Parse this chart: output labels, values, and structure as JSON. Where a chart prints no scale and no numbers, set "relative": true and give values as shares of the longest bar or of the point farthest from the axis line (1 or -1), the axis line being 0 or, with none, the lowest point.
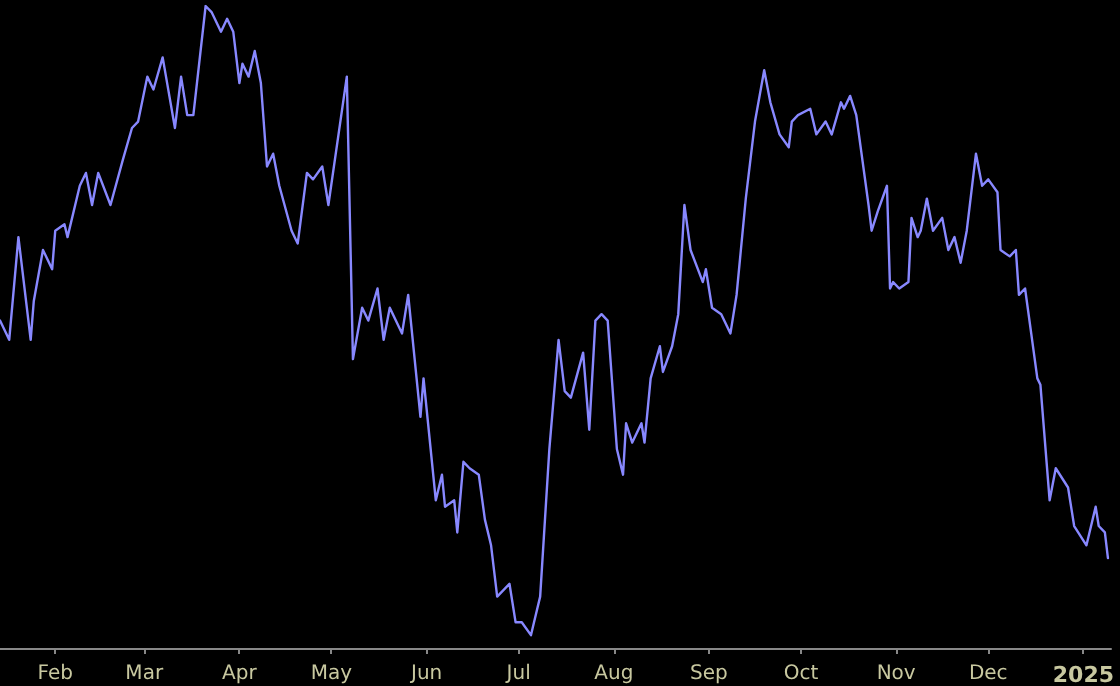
{
  "chart_data": {
    "type": "line",
    "relative": true,
    "color": "#8888ff",
    "marker": "none",
    "line_style": "solid",
    "grid": false,
    "xlim": [
      "2024-01-14",
      "2025-01-10"
    ],
    "xticks": [
      {
        "value": "2024-02-01",
        "label": "Feb"
      },
      {
        "value": "2024-03-01",
        "label": "Mar"
      },
      {
        "value": "2024-04-01",
        "label": "Apr"
      },
      {
        "value": "2024-05-01",
        "label": "May"
      },
      {
        "value": "2024-06-01",
        "label": "Jun"
      },
      {
        "value": "2024-07-01",
        "label": "Jul"
      },
      {
        "value": "2024-08-01",
        "label": "Aug"
      },
      {
        "value": "2024-09-01",
        "label": "Sep"
      },
      {
        "value": "2024-10-01",
        "label": "Oct"
      },
      {
        "value": "2024-11-01",
        "label": "Nov"
      },
      {
        "value": "2024-12-01",
        "label": "Dec"
      },
      {
        "value": "2025-01-01",
        "label": "2025"
      }
    ],
    "x": [
      "2024-01-14",
      "2024-01-17",
      "2024-01-20",
      "2024-01-24",
      "2024-01-25",
      "2024-01-28",
      "2024-01-31",
      "2024-02-01",
      "2024-02-04",
      "2024-02-05",
      "2024-02-09",
      "2024-02-11",
      "2024-02-13",
      "2024-02-15",
      "2024-02-19",
      "2024-02-23",
      "2024-02-26",
      "2024-02-28",
      "2024-03-02",
      "2024-03-04",
      "2024-03-07",
      "2024-03-11",
      "2024-03-13",
      "2024-03-15",
      "2024-03-17",
      "2024-03-21",
      "2024-03-23",
      "2024-03-26",
      "2024-03-28",
      "2024-03-30",
      "2024-04-01",
      "2024-04-02",
      "2024-04-04",
      "2024-04-06",
      "2024-04-08",
      "2024-04-10",
      "2024-04-12",
      "2024-04-14",
      "2024-04-18",
      "2024-04-20",
      "2024-04-23",
      "2024-04-25",
      "2024-04-28",
      "2024-04-30",
      "2024-05-06",
      "2024-05-08",
      "2024-05-11",
      "2024-05-13",
      "2024-05-16",
      "2024-05-18",
      "2024-05-20",
      "2024-05-24",
      "2024-05-26",
      "2024-05-30",
      "2024-05-31",
      "2024-06-04",
      "2024-06-06",
      "2024-06-07",
      "2024-06-10",
      "2024-06-11",
      "2024-06-13",
      "2024-06-15",
      "2024-06-18",
      "2024-06-20",
      "2024-06-22",
      "2024-06-24",
      "2024-06-28",
      "2024-06-30",
      "2024-07-02",
      "2024-07-05",
      "2024-07-06",
      "2024-07-08",
      "2024-07-11",
      "2024-07-14",
      "2024-07-16",
      "2024-07-18",
      "2024-07-22",
      "2024-07-24",
      "2024-07-26",
      "2024-07-28",
      "2024-07-30",
      "2024-08-02",
      "2024-08-04",
      "2024-08-05",
      "2024-08-07",
      "2024-08-10",
      "2024-08-11",
      "2024-08-13",
      "2024-08-16",
      "2024-08-17",
      "2024-08-20",
      "2024-08-22",
      "2024-08-24",
      "2024-08-26",
      "2024-08-30",
      "2024-08-31",
      "2024-09-02",
      "2024-09-05",
      "2024-09-08",
      "2024-09-10",
      "2024-09-13",
      "2024-09-16",
      "2024-09-19",
      "2024-09-21",
      "2024-09-24",
      "2024-09-27",
      "2024-09-28",
      "2024-09-30",
      "2024-10-04",
      "2024-10-06",
      "2024-10-09",
      "2024-10-11",
      "2024-10-14",
      "2024-10-15",
      "2024-10-17",
      "2024-10-19",
      "2024-10-23",
      "2024-10-24",
      "2024-10-26",
      "2024-10-29",
      "2024-10-30",
      "2024-10-31",
      "2024-11-02",
      "2024-11-05",
      "2024-11-06",
      "2024-11-08",
      "2024-11-09",
      "2024-11-11",
      "2024-11-13",
      "2024-11-16",
      "2024-11-18",
      "2024-11-20",
      "2024-11-22",
      "2024-11-24",
      "2024-11-27",
      "2024-11-29",
      "2024-12-01",
      "2024-12-04",
      "2024-12-05",
      "2024-12-08",
      "2024-12-10",
      "2024-12-11",
      "2024-12-13",
      "2024-12-15",
      "2024-12-17",
      "2024-12-18",
      "2024-12-21",
      "2024-12-23",
      "2024-12-27",
      "2024-12-29",
      "2025-01-02",
      "2025-01-05",
      "2025-01-06",
      "2025-01-08",
      "2025-01-09"
    ],
    "values": [
      0.51,
      0.48,
      0.64,
      0.48,
      0.54,
      0.62,
      0.59,
      0.65,
      0.66,
      0.64,
      0.72,
      0.74,
      0.69,
      0.74,
      0.69,
      0.76,
      0.81,
      0.82,
      0.89,
      0.87,
      0.92,
      0.81,
      0.89,
      0.83,
      0.83,
      1.0,
      0.99,
      0.96,
      0.98,
      0.96,
      0.88,
      0.91,
      0.89,
      0.93,
      0.88,
      0.75,
      0.77,
      0.72,
      0.65,
      0.63,
      0.74,
      0.73,
      0.75,
      0.69,
      0.89,
      0.45,
      0.53,
      0.51,
      0.56,
      0.48,
      0.53,
      0.49,
      0.55,
      0.36,
      0.42,
      0.23,
      0.27,
      0.22,
      0.23,
      0.18,
      0.29,
      0.28,
      0.27,
      0.2,
      0.16,
      0.08,
      0.1,
      0.04,
      0.04,
      0.02,
      0.04,
      0.08,
      0.31,
      0.48,
      0.4,
      0.39,
      0.46,
      0.34,
      0.51,
      0.52,
      0.51,
      0.31,
      0.27,
      0.35,
      0.32,
      0.35,
      0.32,
      0.42,
      0.47,
      0.43,
      0.47,
      0.52,
      0.69,
      0.62,
      0.57,
      0.59,
      0.53,
      0.52,
      0.49,
      0.55,
      0.7,
      0.82,
      0.9,
      0.85,
      0.8,
      0.78,
      0.82,
      0.83,
      0.84,
      0.8,
      0.82,
      0.8,
      0.85,
      0.84,
      0.86,
      0.83,
      0.69,
      0.65,
      0.68,
      0.72,
      0.56,
      0.57,
      0.56,
      0.57,
      0.67,
      0.64,
      0.65,
      0.7,
      0.65,
      0.67,
      0.62,
      0.64,
      0.6,
      0.65,
      0.77,
      0.72,
      0.73,
      0.71,
      0.62,
      0.61,
      0.62,
      0.55,
      0.56,
      0.49,
      0.42,
      0.41,
      0.23,
      0.28,
      0.25,
      0.19,
      0.16,
      0.22,
      0.19,
      0.18,
      0.14
    ]
  }
}
